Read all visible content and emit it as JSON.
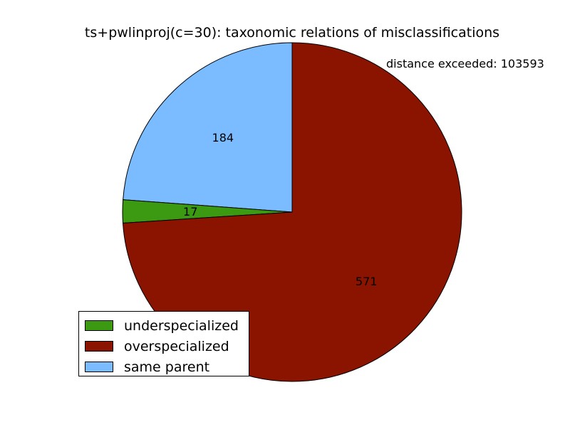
{
  "chart_data": {
    "type": "pie",
    "title": "ts+pwlinproj(c=30): taxonomic relations of misclassifications",
    "annotation": "distance exceeded: 103593",
    "slices": [
      {
        "label": "same parent",
        "value": 184,
        "color": "#7abcff"
      },
      {
        "label": "underspecialized",
        "value": 17,
        "color": "#3c9a12"
      },
      {
        "label": "overspecialized",
        "value": 571,
        "color": "#8b1400"
      }
    ],
    "legend": {
      "placement": "lower-left",
      "entries": [
        {
          "label": "underspecialized",
          "color": "#3c9a12"
        },
        {
          "label": "overspecialized",
          "color": "#8b1400"
        },
        {
          "label": "same parent",
          "color": "#7abcff"
        }
      ]
    },
    "start_angle_deg": 90,
    "direction": "counterclockwise"
  }
}
